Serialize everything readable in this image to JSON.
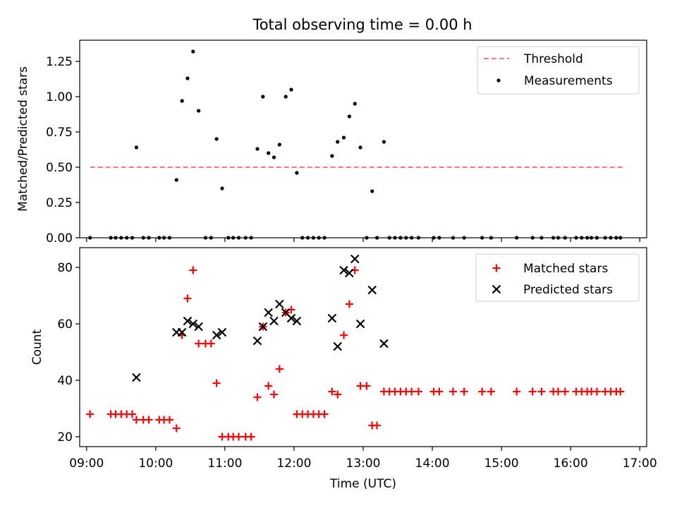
{
  "figure": {
    "title": "Total observing time = 0.00 h",
    "xlabel": "Time (UTC)",
    "xticks": [
      "09:00",
      "10:00",
      "11:00",
      "12:00",
      "13:00",
      "14:00",
      "15:00",
      "16:00",
      "17:00"
    ]
  },
  "chart_data": [
    {
      "type": "scatter",
      "ylabel": "Matched/Predicted stars",
      "xlim": [
        8.9,
        17.1
      ],
      "ylim": [
        0,
        1.4
      ],
      "yticks": [
        "0.00",
        "0.25",
        "0.50",
        "0.75",
        "1.00",
        "1.25"
      ],
      "legend_position": "top-right",
      "threshold": {
        "name": "Threshold",
        "value": 0.5,
        "x": [
          9.05,
          16.75
        ],
        "color": "#ff7777"
      },
      "measurements": {
        "name": "Measurements",
        "color": "#000000",
        "points": [
          [
            9.05,
            0.0
          ],
          [
            9.35,
            0.0
          ],
          [
            9.42,
            0.0
          ],
          [
            9.5,
            0.0
          ],
          [
            9.58,
            0.0
          ],
          [
            9.66,
            0.0
          ],
          [
            9.72,
            0.64
          ],
          [
            9.82,
            0.0
          ],
          [
            9.9,
            0.0
          ],
          [
            10.05,
            0.0
          ],
          [
            10.12,
            0.0
          ],
          [
            10.2,
            0.0
          ],
          [
            10.3,
            0.41
          ],
          [
            10.38,
            0.97
          ],
          [
            10.46,
            1.13
          ],
          [
            10.54,
            1.32
          ],
          [
            10.62,
            0.9
          ],
          [
            10.72,
            0.0
          ],
          [
            10.8,
            0.0
          ],
          [
            10.88,
            0.7
          ],
          [
            10.96,
            0.35
          ],
          [
            11.05,
            0.0
          ],
          [
            11.12,
            0.0
          ],
          [
            11.2,
            0.0
          ],
          [
            11.3,
            0.0
          ],
          [
            11.38,
            0.0
          ],
          [
            11.47,
            0.63
          ],
          [
            11.55,
            1.0
          ],
          [
            11.63,
            0.6
          ],
          [
            11.71,
            0.57
          ],
          [
            11.79,
            0.66
          ],
          [
            11.88,
            1.0
          ],
          [
            11.96,
            1.05
          ],
          [
            12.04,
            0.46
          ],
          [
            12.12,
            0.0
          ],
          [
            12.2,
            0.0
          ],
          [
            12.28,
            0.0
          ],
          [
            12.36,
            0.0
          ],
          [
            12.44,
            0.0
          ],
          [
            12.55,
            0.58
          ],
          [
            12.63,
            0.68
          ],
          [
            12.72,
            0.71
          ],
          [
            12.8,
            0.86
          ],
          [
            12.88,
            0.95
          ],
          [
            12.96,
            0.64
          ],
          [
            13.05,
            0.0
          ],
          [
            13.13,
            0.33
          ],
          [
            13.2,
            0.0
          ],
          [
            13.3,
            0.68
          ],
          [
            13.38,
            0.0
          ],
          [
            13.46,
            0.0
          ],
          [
            13.54,
            0.0
          ],
          [
            13.62,
            0.0
          ],
          [
            13.7,
            0.0
          ],
          [
            13.8,
            0.0
          ],
          [
            14.02,
            0.0
          ],
          [
            14.1,
            0.0
          ],
          [
            14.3,
            0.0
          ],
          [
            14.46,
            0.0
          ],
          [
            14.72,
            0.0
          ],
          [
            14.85,
            0.0
          ],
          [
            15.22,
            0.0
          ],
          [
            15.45,
            0.0
          ],
          [
            15.58,
            0.0
          ],
          [
            15.75,
            0.0
          ],
          [
            15.82,
            0.0
          ],
          [
            15.92,
            0.0
          ],
          [
            16.08,
            0.0
          ],
          [
            16.16,
            0.0
          ],
          [
            16.24,
            0.0
          ],
          [
            16.3,
            0.0
          ],
          [
            16.38,
            0.0
          ],
          [
            16.5,
            0.0
          ],
          [
            16.58,
            0.0
          ],
          [
            16.66,
            0.0
          ],
          [
            16.72,
            0.0
          ]
        ]
      }
    },
    {
      "type": "scatter",
      "ylabel": "Count",
      "xlim": [
        8.9,
        17.1
      ],
      "ylim": [
        16.5,
        87
      ],
      "yticks": [
        20,
        40,
        60,
        80
      ],
      "legend_position": "top-right",
      "series": [
        {
          "name": "Matched stars",
          "marker": "plus",
          "color": "#ff0000",
          "points": [
            [
              9.05,
              28
            ],
            [
              9.35,
              28
            ],
            [
              9.42,
              28
            ],
            [
              9.5,
              28
            ],
            [
              9.58,
              28
            ],
            [
              9.66,
              28
            ],
            [
              9.72,
              26
            ],
            [
              9.82,
              26
            ],
            [
              9.9,
              26
            ],
            [
              10.05,
              26
            ],
            [
              10.12,
              26
            ],
            [
              10.2,
              26
            ],
            [
              10.3,
              23
            ],
            [
              10.38,
              56
            ],
            [
              10.46,
              69
            ],
            [
              10.54,
              79
            ],
            [
              10.62,
              53
            ],
            [
              10.72,
              53
            ],
            [
              10.8,
              53
            ],
            [
              10.88,
              39
            ],
            [
              10.96,
              20
            ],
            [
              11.05,
              20
            ],
            [
              11.12,
              20
            ],
            [
              11.2,
              20
            ],
            [
              11.3,
              20
            ],
            [
              11.38,
              20
            ],
            [
              11.47,
              34
            ],
            [
              11.55,
              59
            ],
            [
              11.63,
              38
            ],
            [
              11.71,
              35
            ],
            [
              11.79,
              44
            ],
            [
              11.88,
              64
            ],
            [
              11.96,
              65
            ],
            [
              12.04,
              28
            ],
            [
              12.12,
              28
            ],
            [
              12.2,
              28
            ],
            [
              12.28,
              28
            ],
            [
              12.36,
              28
            ],
            [
              12.44,
              28
            ],
            [
              12.55,
              36
            ],
            [
              12.63,
              35
            ],
            [
              12.72,
              56
            ],
            [
              12.8,
              67
            ],
            [
              12.88,
              79
            ],
            [
              12.96,
              38
            ],
            [
              13.05,
              38
            ],
            [
              13.13,
              24
            ],
            [
              13.2,
              24
            ],
            [
              13.3,
              36
            ],
            [
              13.38,
              36
            ],
            [
              13.46,
              36
            ],
            [
              13.54,
              36
            ],
            [
              13.62,
              36
            ],
            [
              13.7,
              36
            ],
            [
              13.8,
              36
            ],
            [
              14.02,
              36
            ],
            [
              14.1,
              36
            ],
            [
              14.3,
              36
            ],
            [
              14.46,
              36
            ],
            [
              14.72,
              36
            ],
            [
              14.85,
              36
            ],
            [
              15.22,
              36
            ],
            [
              15.45,
              36
            ],
            [
              15.58,
              36
            ],
            [
              15.75,
              36
            ],
            [
              15.82,
              36
            ],
            [
              15.92,
              36
            ],
            [
              16.08,
              36
            ],
            [
              16.16,
              36
            ],
            [
              16.24,
              36
            ],
            [
              16.3,
              36
            ],
            [
              16.38,
              36
            ],
            [
              16.5,
              36
            ],
            [
              16.58,
              36
            ],
            [
              16.66,
              36
            ],
            [
              16.72,
              36
            ]
          ]
        },
        {
          "name": "Predicted stars",
          "marker": "x",
          "color": "#000000",
          "points": [
            [
              9.72,
              41
            ],
            [
              10.3,
              57
            ],
            [
              10.38,
              57
            ],
            [
              10.46,
              61
            ],
            [
              10.54,
              60
            ],
            [
              10.62,
              59
            ],
            [
              10.88,
              56
            ],
            [
              10.96,
              57
            ],
            [
              11.47,
              54
            ],
            [
              11.55,
              59
            ],
            [
              11.63,
              64
            ],
            [
              11.71,
              61
            ],
            [
              11.79,
              67
            ],
            [
              11.88,
              64
            ],
            [
              11.96,
              62
            ],
            [
              12.04,
              61
            ],
            [
              12.55,
              62
            ],
            [
              12.63,
              52
            ],
            [
              12.72,
              79
            ],
            [
              12.8,
              78
            ],
            [
              12.88,
              83
            ],
            [
              12.96,
              60
            ],
            [
              13.13,
              72
            ],
            [
              13.3,
              53
            ]
          ]
        }
      ]
    }
  ]
}
